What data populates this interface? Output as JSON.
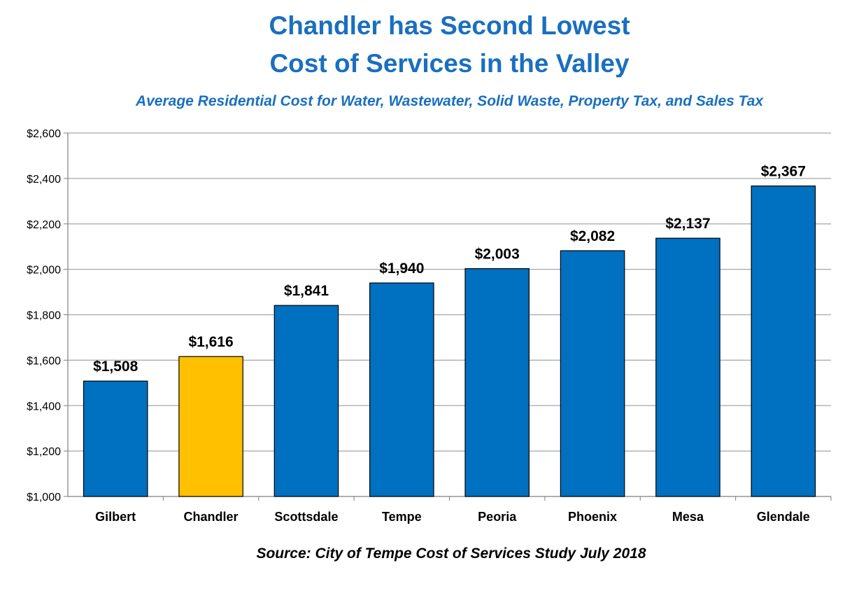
{
  "chart_data": {
    "type": "bar",
    "title_lines": [
      "Chandler has Second Lowest",
      "Cost of Services in the Valley"
    ],
    "subtitle": "Average Residential Cost for Water, Wastewater, Solid Waste, Property Tax, and Sales Tax",
    "source": "Source: City of Tempe Cost of Services Study July 2018",
    "categories": [
      "Gilbert",
      "Chandler",
      "Scottsdale",
      "Tempe",
      "Peoria",
      "Phoenix",
      "Mesa",
      "Glendale"
    ],
    "values": [
      1508,
      1616,
      1841,
      1940,
      2003,
      2082,
      2137,
      2367
    ],
    "data_labels": [
      "$1,508",
      "$1,616",
      "$1,841",
      "$1,940",
      "$2,003",
      "$2,082",
      "$2,137",
      "$2,367"
    ],
    "y_ticks": [
      1000,
      1200,
      1400,
      1600,
      1800,
      2000,
      2200,
      2400,
      2600
    ],
    "y_tick_labels": [
      "$1,000",
      "$1,200",
      "$1,400",
      "$1,600",
      "$1,800",
      "$2,000",
      "$2,200",
      "$2,400",
      "$2,600"
    ],
    "ylim": [
      1000,
      2600
    ],
    "grid": true,
    "legend": "none",
    "colors": {
      "bar": "#0070c0",
      "highlight": "#ffc000",
      "highlight_category": "Chandler",
      "title": "#1a6fbf",
      "grid": "#a6a6a6"
    }
  }
}
